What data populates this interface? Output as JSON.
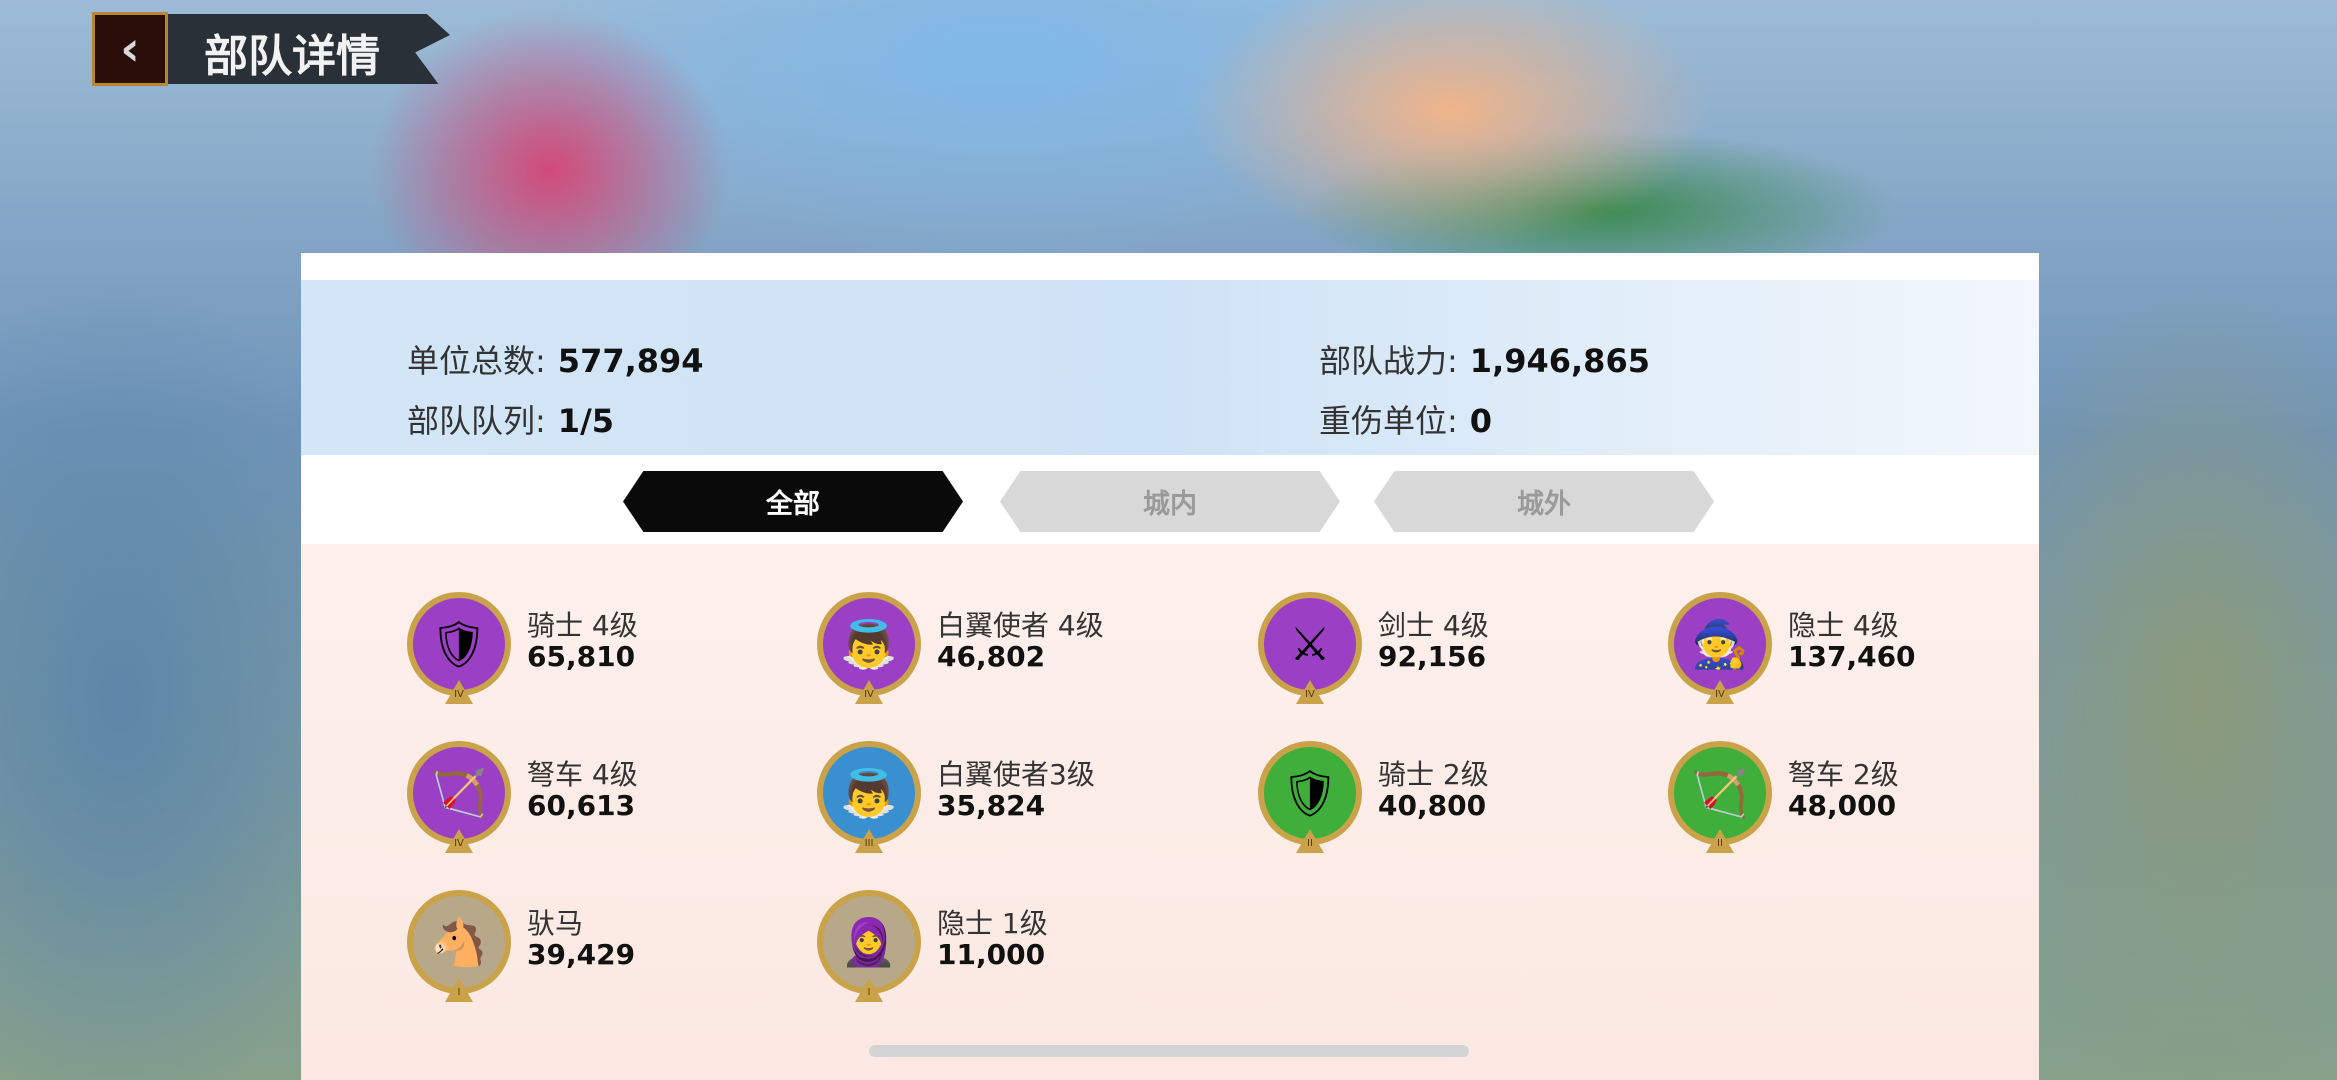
{
  "header": {
    "title": "部队详情",
    "back_icon": "chevron-left-icon"
  },
  "stats": {
    "total_units_label": "单位总数:",
    "total_units": "577,894",
    "queue_label": "部队队列:",
    "queue": "1/5",
    "power_label": "部队战力:",
    "power": "1,946,865",
    "wounded_label": "重伤单位:",
    "wounded": "0"
  },
  "tabs": [
    {
      "label": "全部",
      "active": true
    },
    {
      "label": "城内",
      "active": false
    },
    {
      "label": "城外",
      "active": false
    }
  ],
  "units": [
    {
      "name": "骑士 4级",
      "count": "65,810",
      "tier": "IV",
      "color": "#9b3fc4",
      "glyph": "🛡"
    },
    {
      "name": "白翼使者 4级",
      "count": "46,802",
      "tier": "IV",
      "color": "#9b3fc4",
      "glyph": "👼"
    },
    {
      "name": "剑士 4级",
      "count": "92,156",
      "tier": "IV",
      "color": "#9b3fc4",
      "glyph": "⚔"
    },
    {
      "name": "隐士 4级",
      "count": "137,460",
      "tier": "IV",
      "color": "#9b3fc4",
      "glyph": "🧙"
    },
    {
      "name": "弩车 4级",
      "count": "60,613",
      "tier": "IV",
      "color": "#9b3fc4",
      "glyph": "🏹"
    },
    {
      "name": "白翼使者3级",
      "count": "35,824",
      "tier": "III",
      "color": "#3a8fd0",
      "glyph": "👼"
    },
    {
      "name": "骑士 2级",
      "count": "40,800",
      "tier": "II",
      "color": "#3fae3a",
      "glyph": "🛡"
    },
    {
      "name": "弩车 2级",
      "count": "48,000",
      "tier": "II",
      "color": "#3fae3a",
      "glyph": "🏹"
    },
    {
      "name": "驮马",
      "count": "39,429",
      "tier": "I",
      "color": "#b8a88a",
      "glyph": "🐴"
    },
    {
      "name": "隐士 1级",
      "count": "11,000",
      "tier": "I",
      "color": "#b8a88a",
      "glyph": "🧕"
    }
  ]
}
